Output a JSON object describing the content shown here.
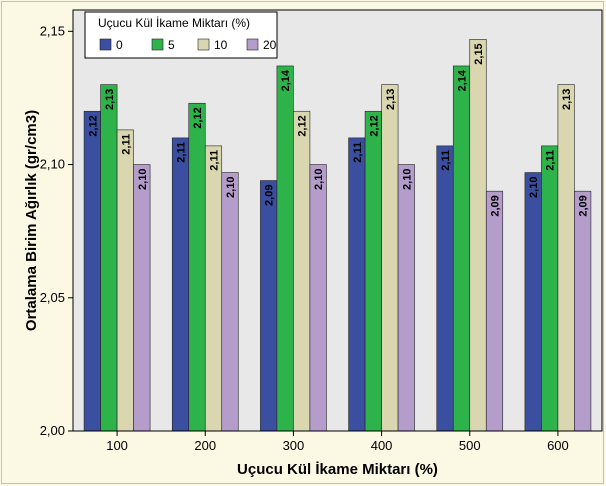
{
  "chart_data": {
    "type": "bar",
    "xlabel": "Uçucu Kül İkame Miktarı (%)",
    "ylabel": "Ortalama Birim Ağırlık (gr/cm3)",
    "ylim": [
      2.0,
      2.158
    ],
    "yticks": [
      "2,00",
      "2,05",
      "2,10",
      "2,15"
    ],
    "ytick_values": [
      2.0,
      2.05,
      2.1,
      2.15
    ],
    "grid": false,
    "categories": [
      "100",
      "200",
      "300",
      "400",
      "500",
      "600"
    ],
    "legend": {
      "title": "Uçucu Kül İkame Miktarı (%)",
      "placement": "top-left"
    },
    "series": [
      {
        "name": "0",
        "color": "#3b4fa0",
        "values": [
          2.12,
          2.11,
          2.094,
          2.11,
          2.107,
          2.097
        ],
        "labels": [
          "2,12",
          "2,11",
          "2,09",
          "2,11",
          "2,11",
          "2,10"
        ]
      },
      {
        "name": "5",
        "color": "#2db34a",
        "values": [
          2.13,
          2.123,
          2.137,
          2.12,
          2.137,
          2.107
        ],
        "labels": [
          "2,13",
          "2,12",
          "2,14",
          "2,12",
          "2,14",
          "2,11"
        ]
      },
      {
        "name": "10",
        "color": "#d9d6b0",
        "values": [
          2.113,
          2.107,
          2.12,
          2.13,
          2.147,
          2.13
        ],
        "labels": [
          "2,11",
          "2,11",
          "2,12",
          "2,13",
          "2,15",
          "2,13"
        ]
      },
      {
        "name": "20",
        "color": "#b49ccb",
        "values": [
          2.1,
          2.097,
          2.1,
          2.1,
          2.09,
          2.09
        ],
        "labels": [
          "2,10",
          "2,10",
          "2,10",
          "2,10",
          "2,09",
          "2,09"
        ]
      }
    ]
  }
}
